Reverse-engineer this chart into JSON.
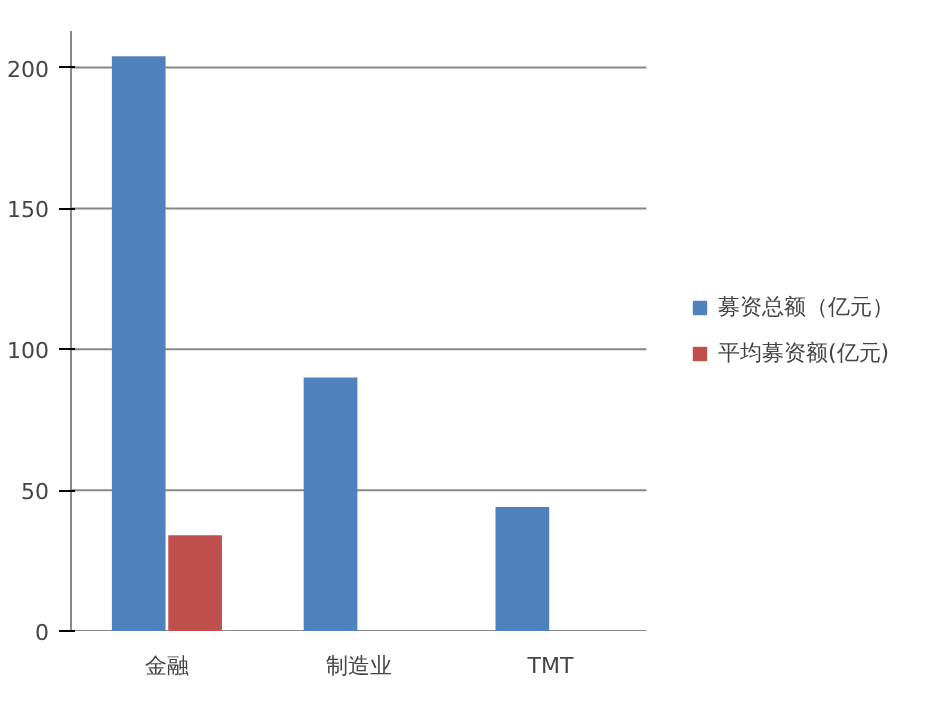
{
  "chart_data": {
    "type": "bar",
    "categories": [
      "金融",
      "制造业",
      "TMT"
    ],
    "series": [
      {
        "name": "募资总额（亿元）",
        "color": "#4f81bd",
        "values": [
          204,
          90,
          44
        ]
      },
      {
        "name": "平均募资额(亿元)",
        "color": "#c0504d",
        "values": [
          34,
          null,
          null
        ]
      }
    ],
    "ylim": [
      0,
      213
    ],
    "yticks": [
      0,
      50,
      100,
      150,
      200
    ],
    "grid": "y",
    "legend": "right"
  }
}
